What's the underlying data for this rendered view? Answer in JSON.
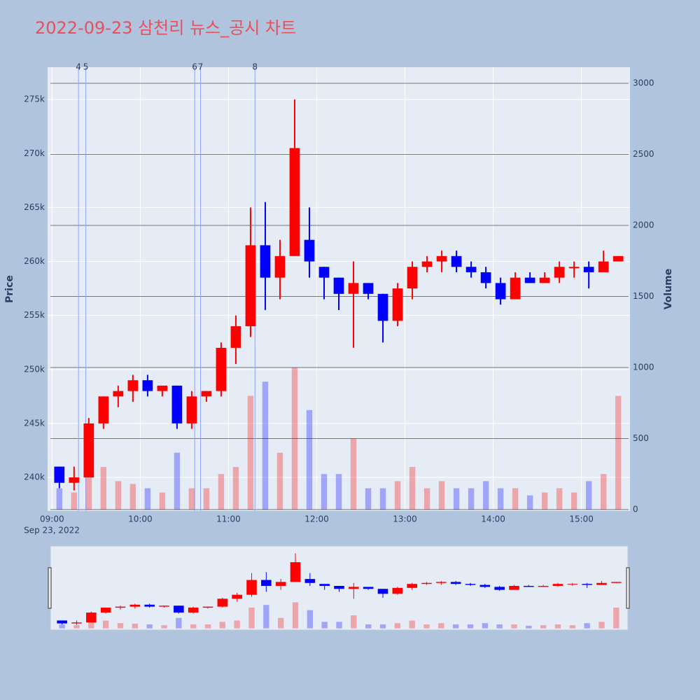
{
  "chart_data": {
    "type": "candlestick",
    "title": "2022-09-23 삼천리 뉴스_공시 차트",
    "y_label": "Price",
    "y2_label": "Volume",
    "x_date_label": "Sep 23, 2022",
    "up_color": "#ff0000",
    "down_color": "#0000ff",
    "x": [
      "09:00",
      "09:10",
      "09:20",
      "09:30",
      "09:40",
      "09:50",
      "10:00",
      "10:10",
      "10:20",
      "10:30",
      "10:40",
      "10:50",
      "11:00",
      "11:10",
      "11:20",
      "11:30",
      "11:40",
      "11:50",
      "12:00",
      "12:10",
      "12:20",
      "12:30",
      "12:40",
      "12:50",
      "13:00",
      "13:10",
      "13:20",
      "13:30",
      "13:40",
      "13:50",
      "14:00",
      "14:10",
      "14:20",
      "14:30",
      "14:40",
      "14:50",
      "15:00",
      "15:10",
      "15:20"
    ],
    "open": [
      241000,
      239500,
      240000,
      245000,
      247500,
      248000,
      249000,
      248000,
      248500,
      245000,
      247500,
      248000,
      252000,
      254000,
      261500,
      258500,
      260500,
      262000,
      259500,
      258500,
      257000,
      258000,
      257000,
      254500,
      257500,
      259500,
      260000,
      260500,
      259500,
      259000,
      258000,
      256500,
      258500,
      258000,
      258500,
      259500,
      259500,
      259000,
      260000
    ],
    "high": [
      241000,
      241000,
      245500,
      247500,
      248500,
      249500,
      249500,
      248500,
      248500,
      248000,
      248000,
      252500,
      255000,
      265000,
      265500,
      262000,
      275000,
      265000,
      259500,
      258500,
      260000,
      258000,
      257000,
      258000,
      260000,
      260500,
      261000,
      261000,
      260000,
      259500,
      258500,
      259000,
      259000,
      259000,
      260000,
      260000,
      260000,
      261000,
      260500
    ],
    "low": [
      239000,
      238800,
      240000,
      244500,
      246500,
      247000,
      247500,
      247500,
      244500,
      244500,
      247000,
      247500,
      250500,
      253000,
      255500,
      256500,
      260500,
      258500,
      256500,
      255500,
      252000,
      256500,
      252500,
      254000,
      256500,
      259000,
      259000,
      259000,
      258500,
      257500,
      256000,
      256500,
      258000,
      258000,
      258000,
      258500,
      257500,
      259000,
      260000
    ],
    "close": [
      239500,
      240000,
      245000,
      247500,
      248000,
      249000,
      248000,
      248500,
      245000,
      247500,
      248000,
      252000,
      254000,
      261500,
      258500,
      260500,
      270500,
      260000,
      258500,
      257000,
      258000,
      257000,
      254500,
      257500,
      259500,
      260000,
      260500,
      259500,
      259000,
      258000,
      256500,
      258500,
      258000,
      258500,
      259500,
      259500,
      259000,
      260000,
      260500
    ],
    "volume": [
      150,
      120,
      250,
      300,
      200,
      180,
      150,
      120,
      400,
      150,
      150,
      250,
      300,
      800,
      900,
      400,
      1000,
      700,
      250,
      250,
      500,
      150,
      150,
      200,
      300,
      150,
      200,
      150,
      150,
      200,
      150,
      150,
      100,
      120,
      150,
      120,
      200,
      250,
      800
    ],
    "markers": [
      {
        "time": "09:18",
        "label": "4"
      },
      {
        "time": "09:23",
        "label": "5"
      },
      {
        "time": "10:37",
        "label": "6"
      },
      {
        "time": "10:41",
        "label": "7"
      },
      {
        "time": "11:18",
        "label": "8"
      }
    ],
    "xlim": [
      "08:57",
      "15:33"
    ],
    "xticks": [
      "09:00",
      "10:00",
      "11:00",
      "12:00",
      "13:00",
      "14:00",
      "15:00"
    ],
    "ylim": [
      236890,
      277990
    ],
    "yticks": [
      {
        "value": 240000,
        "label": "240k"
      },
      {
        "value": 245000,
        "label": "245k"
      },
      {
        "value": 250000,
        "label": "250k"
      },
      {
        "value": 255000,
        "label": "255k"
      },
      {
        "value": 260000,
        "label": "260k"
      },
      {
        "value": 265000,
        "label": "265k"
      },
      {
        "value": 270000,
        "label": "270k"
      },
      {
        "value": 275000,
        "label": "275k"
      }
    ],
    "y2lim": [
      -10,
      3113
    ],
    "y2ticks": [
      0,
      500,
      1000,
      1500,
      2000,
      2500,
      3000
    ]
  }
}
